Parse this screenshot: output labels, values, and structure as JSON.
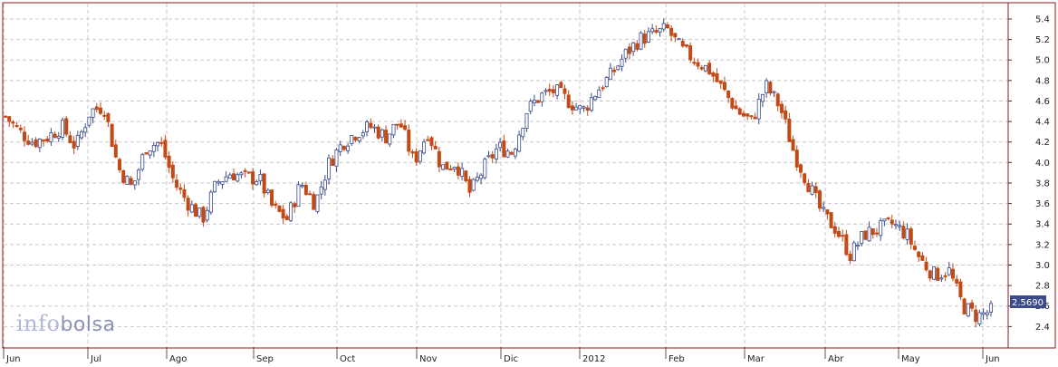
{
  "brand": {
    "logo_prefix": "info",
    "logo_suffix": "bolsa"
  },
  "colors": {
    "up": "#3a4a8a",
    "down": "#c24a16",
    "grid": "#c8c8c8",
    "frame": "#8a1a1a",
    "tag": "#3a4a8a"
  },
  "chart_data": {
    "type": "candlestick",
    "title": "",
    "xlabel": "",
    "ylabel": "",
    "ylim": [
      2.2,
      5.55
    ],
    "y_ticks": [
      "5.4",
      "5.2",
      "5.0",
      "4.8",
      "4.6",
      "4.4",
      "4.2",
      "4.0",
      "3.8",
      "3.6",
      "3.4",
      "3.2",
      "3.0",
      "2.8",
      "2.6",
      "2.4"
    ],
    "x_ticks": [
      "Jun",
      "Jul",
      "Ago",
      "Sep",
      "Oct",
      "Nov",
      "Dic",
      "2012",
      "Feb",
      "Mar",
      "Abr",
      "May",
      "Jun"
    ],
    "grid": true,
    "last_price": "2.5690",
    "trend": [
      4.45,
      4.3,
      4.2,
      4.25,
      4.35,
      4.15,
      4.5,
      4.55,
      3.95,
      3.75,
      4.15,
      4.2,
      3.8,
      3.6,
      3.45,
      3.8,
      3.9,
      3.85,
      3.85,
      3.55,
      3.45,
      3.8,
      3.6,
      4.0,
      4.2,
      4.3,
      4.35,
      4.25,
      4.4,
      4.0,
      4.3,
      3.95,
      4.0,
      3.7,
      3.95,
      4.15,
      4.1,
      4.5,
      4.65,
      4.7,
      4.6,
      4.5,
      4.7,
      4.85,
      5.05,
      5.2,
      5.25,
      5.3,
      5.1,
      5.0,
      4.9,
      4.7,
      4.5,
      4.4,
      4.75,
      4.55,
      4.1,
      3.8,
      3.5,
      3.35,
      3.1,
      3.3,
      3.35,
      3.4,
      3.3,
      3.05,
      2.9,
      2.95,
      2.6,
      2.5,
      2.55
    ]
  }
}
